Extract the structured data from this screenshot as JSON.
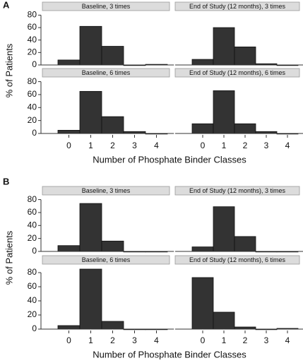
{
  "panels": [
    {
      "label": "A",
      "ylabel": "% of Patients",
      "xlabel": "Number of Phosphate Binder Classes"
    },
    {
      "label": "B",
      "ylabel": "% of Patients",
      "xlabel": "Number of Phosphate Binder Classes"
    }
  ],
  "chart_data": [
    {
      "type": "bar",
      "title": "Baseline, 3 times",
      "values": [
        8,
        62,
        30,
        0,
        1
      ],
      "color": "#333333",
      "ylim": [
        0,
        85
      ],
      "yticks": [
        0,
        20,
        40,
        60,
        80
      ]
    },
    {
      "type": "bar",
      "title": "End of Study (12 months), 3 times",
      "values": [
        9,
        60,
        29,
        2,
        0
      ],
      "color": "#333333",
      "ylim": [
        0,
        85
      ]
    },
    {
      "type": "bar",
      "title": "Baseline, 6 times",
      "categories": [
        "0",
        "1",
        "2",
        "3",
        "4"
      ],
      "values": [
        5,
        65,
        26,
        3,
        0
      ],
      "color": "#333333",
      "ylim": [
        0,
        85
      ],
      "yticks": [
        0,
        20,
        40,
        60,
        80
      ]
    },
    {
      "type": "bar",
      "title": "End of Study (12 months), 6 times",
      "categories": [
        "0",
        "1",
        "2",
        "3",
        "4"
      ],
      "values": [
        15,
        66,
        15,
        3,
        0
      ],
      "color": "#333333",
      "ylim": [
        0,
        85
      ]
    },
    {
      "type": "bar",
      "title": "Baseline, 3 times",
      "values": [
        9,
        74,
        16,
        0,
        0
      ],
      "color": "#333333",
      "ylim": [
        0,
        85
      ],
      "yticks": [
        0,
        20,
        40,
        60,
        80
      ]
    },
    {
      "type": "bar",
      "title": "End of Study (12 months), 3 times",
      "values": [
        7,
        69,
        23,
        0,
        0
      ],
      "color": "#333333",
      "ylim": [
        0,
        85
      ]
    },
    {
      "type": "bar",
      "title": "Baseline, 6 times",
      "categories": [
        "0",
        "1",
        "2",
        "3",
        "4"
      ],
      "values": [
        5,
        85,
        11,
        0,
        0
      ],
      "color": "#333333",
      "ylim": [
        0,
        90
      ],
      "yticks": [
        0,
        20,
        40,
        60,
        80
      ]
    },
    {
      "type": "bar",
      "title": "End of Study (12 months), 6 times",
      "categories": [
        "0",
        "1",
        "2",
        "3",
        "4"
      ],
      "values": [
        73,
        24,
        3,
        0,
        1
      ],
      "color": "#333333",
      "ylim": [
        0,
        90
      ]
    }
  ]
}
